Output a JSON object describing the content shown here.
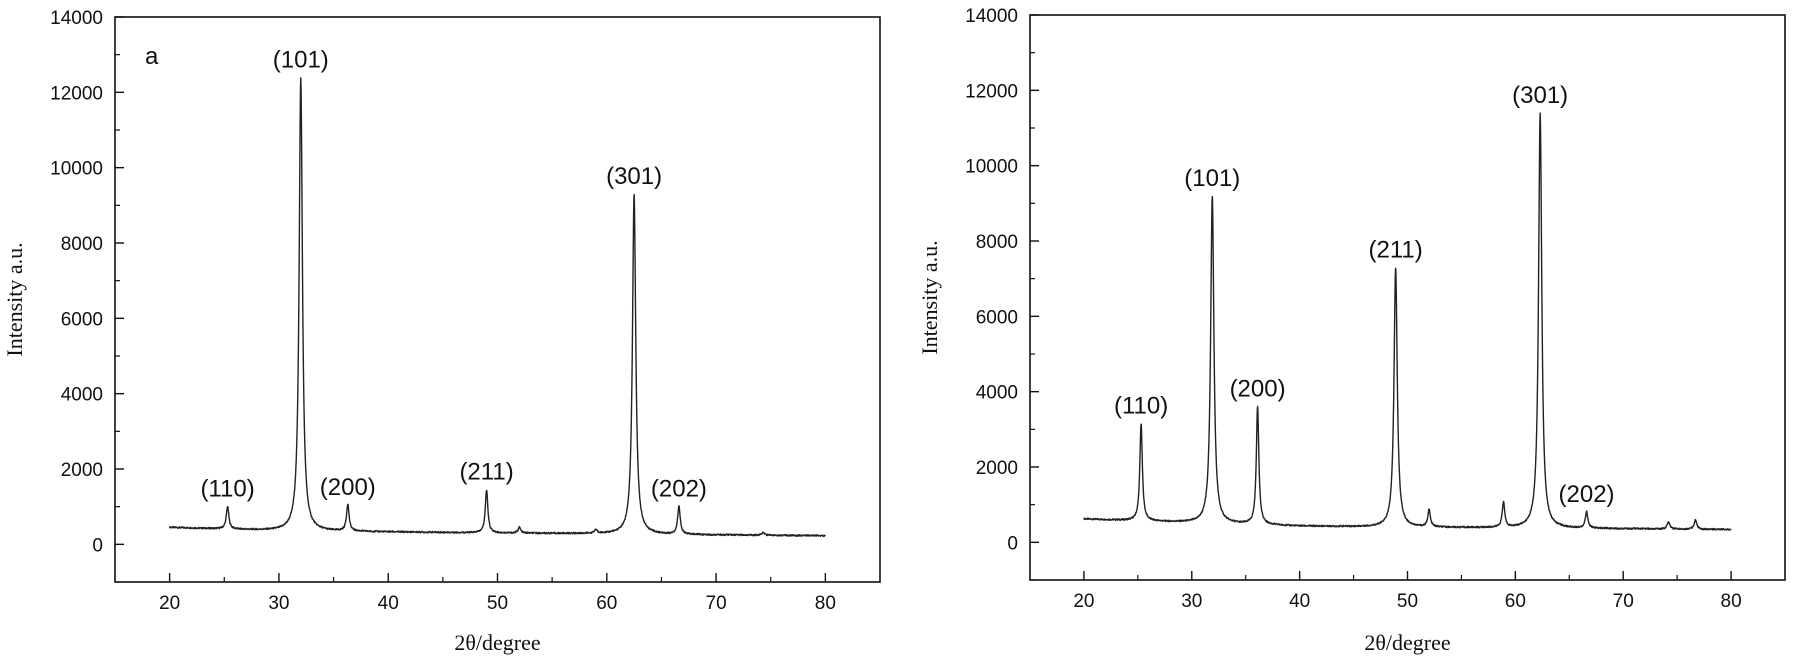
{
  "chart_data": [
    {
      "type": "line",
      "panel_label": "a",
      "xlabel": "2θ/degree",
      "ylabel": "Intensity a.u.",
      "xlim": [
        15,
        85
      ],
      "ylim": [
        -1000,
        14000
      ],
      "xticks": [
        20,
        30,
        40,
        50,
        60,
        70,
        80
      ],
      "yticks": [
        0,
        2000,
        4000,
        6000,
        8000,
        10000,
        12000,
        14000
      ],
      "grid": false,
      "baseline": [
        [
          20,
          450
        ],
        [
          30,
          360
        ],
        [
          40,
          330
        ],
        [
          50,
          300
        ],
        [
          60,
          280
        ],
        [
          70,
          250
        ],
        [
          80,
          230
        ]
      ],
      "peaks": [
        {
          "x": 25.3,
          "y": 1000,
          "label": "(110)"
        },
        {
          "x": 32.0,
          "y": 12400,
          "label": "(101)"
        },
        {
          "x": 36.3,
          "y": 1050,
          "label": "(200)"
        },
        {
          "x": 49.0,
          "y": 1450,
          "label": "(211)"
        },
        {
          "x": 52.0,
          "y": 450,
          "label": ""
        },
        {
          "x": 59.0,
          "y": 380,
          "label": ""
        },
        {
          "x": 62.5,
          "y": 9300,
          "label": "(301)"
        },
        {
          "x": 66.6,
          "y": 1000,
          "label": "(202)"
        },
        {
          "x": 74.3,
          "y": 320,
          "label": ""
        }
      ]
    },
    {
      "type": "line",
      "panel_label": "",
      "xlabel": "2θ/degree",
      "ylabel": "Intensity a.u.",
      "xlim": [
        15,
        85
      ],
      "ylim": [
        -1000,
        14000
      ],
      "xticks": [
        20,
        30,
        40,
        50,
        60,
        70,
        80
      ],
      "yticks": [
        0,
        2000,
        4000,
        6000,
        8000,
        10000,
        12000,
        14000
      ],
      "grid": false,
      "baseline": [
        [
          20,
          620
        ],
        [
          30,
          520
        ],
        [
          40,
          430
        ],
        [
          50,
          400
        ],
        [
          60,
          380
        ],
        [
          70,
          360
        ],
        [
          80,
          340
        ]
      ],
      "peaks": [
        {
          "x": 25.3,
          "y": 3150,
          "label": "(110)"
        },
        {
          "x": 31.9,
          "y": 9200,
          "label": "(101)"
        },
        {
          "x": 36.1,
          "y": 3600,
          "label": "(200)"
        },
        {
          "x": 48.9,
          "y": 7300,
          "label": "(211)"
        },
        {
          "x": 52.0,
          "y": 850,
          "label": ""
        },
        {
          "x": 58.9,
          "y": 1050,
          "label": ""
        },
        {
          "x": 62.3,
          "y": 11400,
          "label": "(301)"
        },
        {
          "x": 66.6,
          "y": 800,
          "label": "(202)"
        },
        {
          "x": 74.2,
          "y": 550,
          "label": ""
        },
        {
          "x": 76.7,
          "y": 600,
          "label": ""
        }
      ]
    }
  ]
}
